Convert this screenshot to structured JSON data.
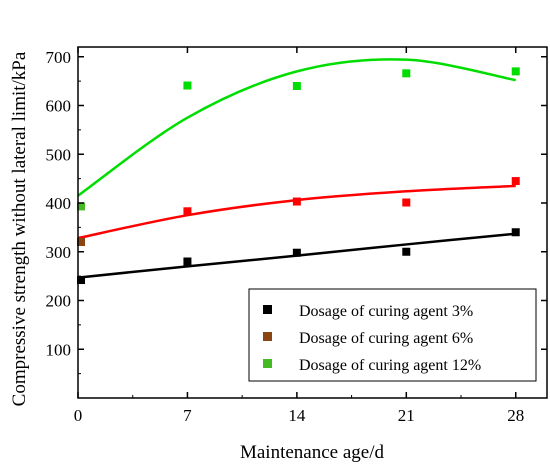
{
  "chart_data": {
    "type": "scatter",
    "title": "",
    "xlabel": "Maintenance age/d",
    "ylabel": "Compressive strength without lateral limit/kPa",
    "xlim": [
      0,
      30
    ],
    "ylim": [
      0,
      720
    ],
    "xticks": [
      0,
      7,
      14,
      21,
      28
    ],
    "yticks": [
      100,
      200,
      300,
      400,
      500,
      600,
      700
    ],
    "grid": false,
    "legend_position": "bottom-right",
    "series": [
      {
        "name": "Dosage of curing agent 3%",
        "color": "#000000",
        "x": [
          0,
          7,
          14,
          21,
          28
        ],
        "y": [
          242,
          280,
          298,
          300,
          340
        ],
        "fit": [
          247,
          270,
          292,
          315,
          337
        ]
      },
      {
        "name": "Dosage of curing agent 6%",
        "color": "#ff0000",
        "legend_color": "#8b4513",
        "first_point_color": "#8b4513",
        "x": [
          0,
          7,
          14,
          21,
          28
        ],
        "y": [
          320,
          383,
          403,
          401,
          445
        ],
        "fit": [
          328,
          375,
          406,
          424,
          435
        ]
      },
      {
        "name": "Dosage of curing agent 12%",
        "color": "#00dd00",
        "legend_color": "#44bb22",
        "first_point_color": "#44bb22",
        "x": [
          0,
          7,
          14,
          21,
          28
        ],
        "y": [
          393,
          641,
          640,
          666,
          670
        ],
        "fit": [
          415,
          575,
          670,
          694,
          652
        ]
      }
    ]
  }
}
